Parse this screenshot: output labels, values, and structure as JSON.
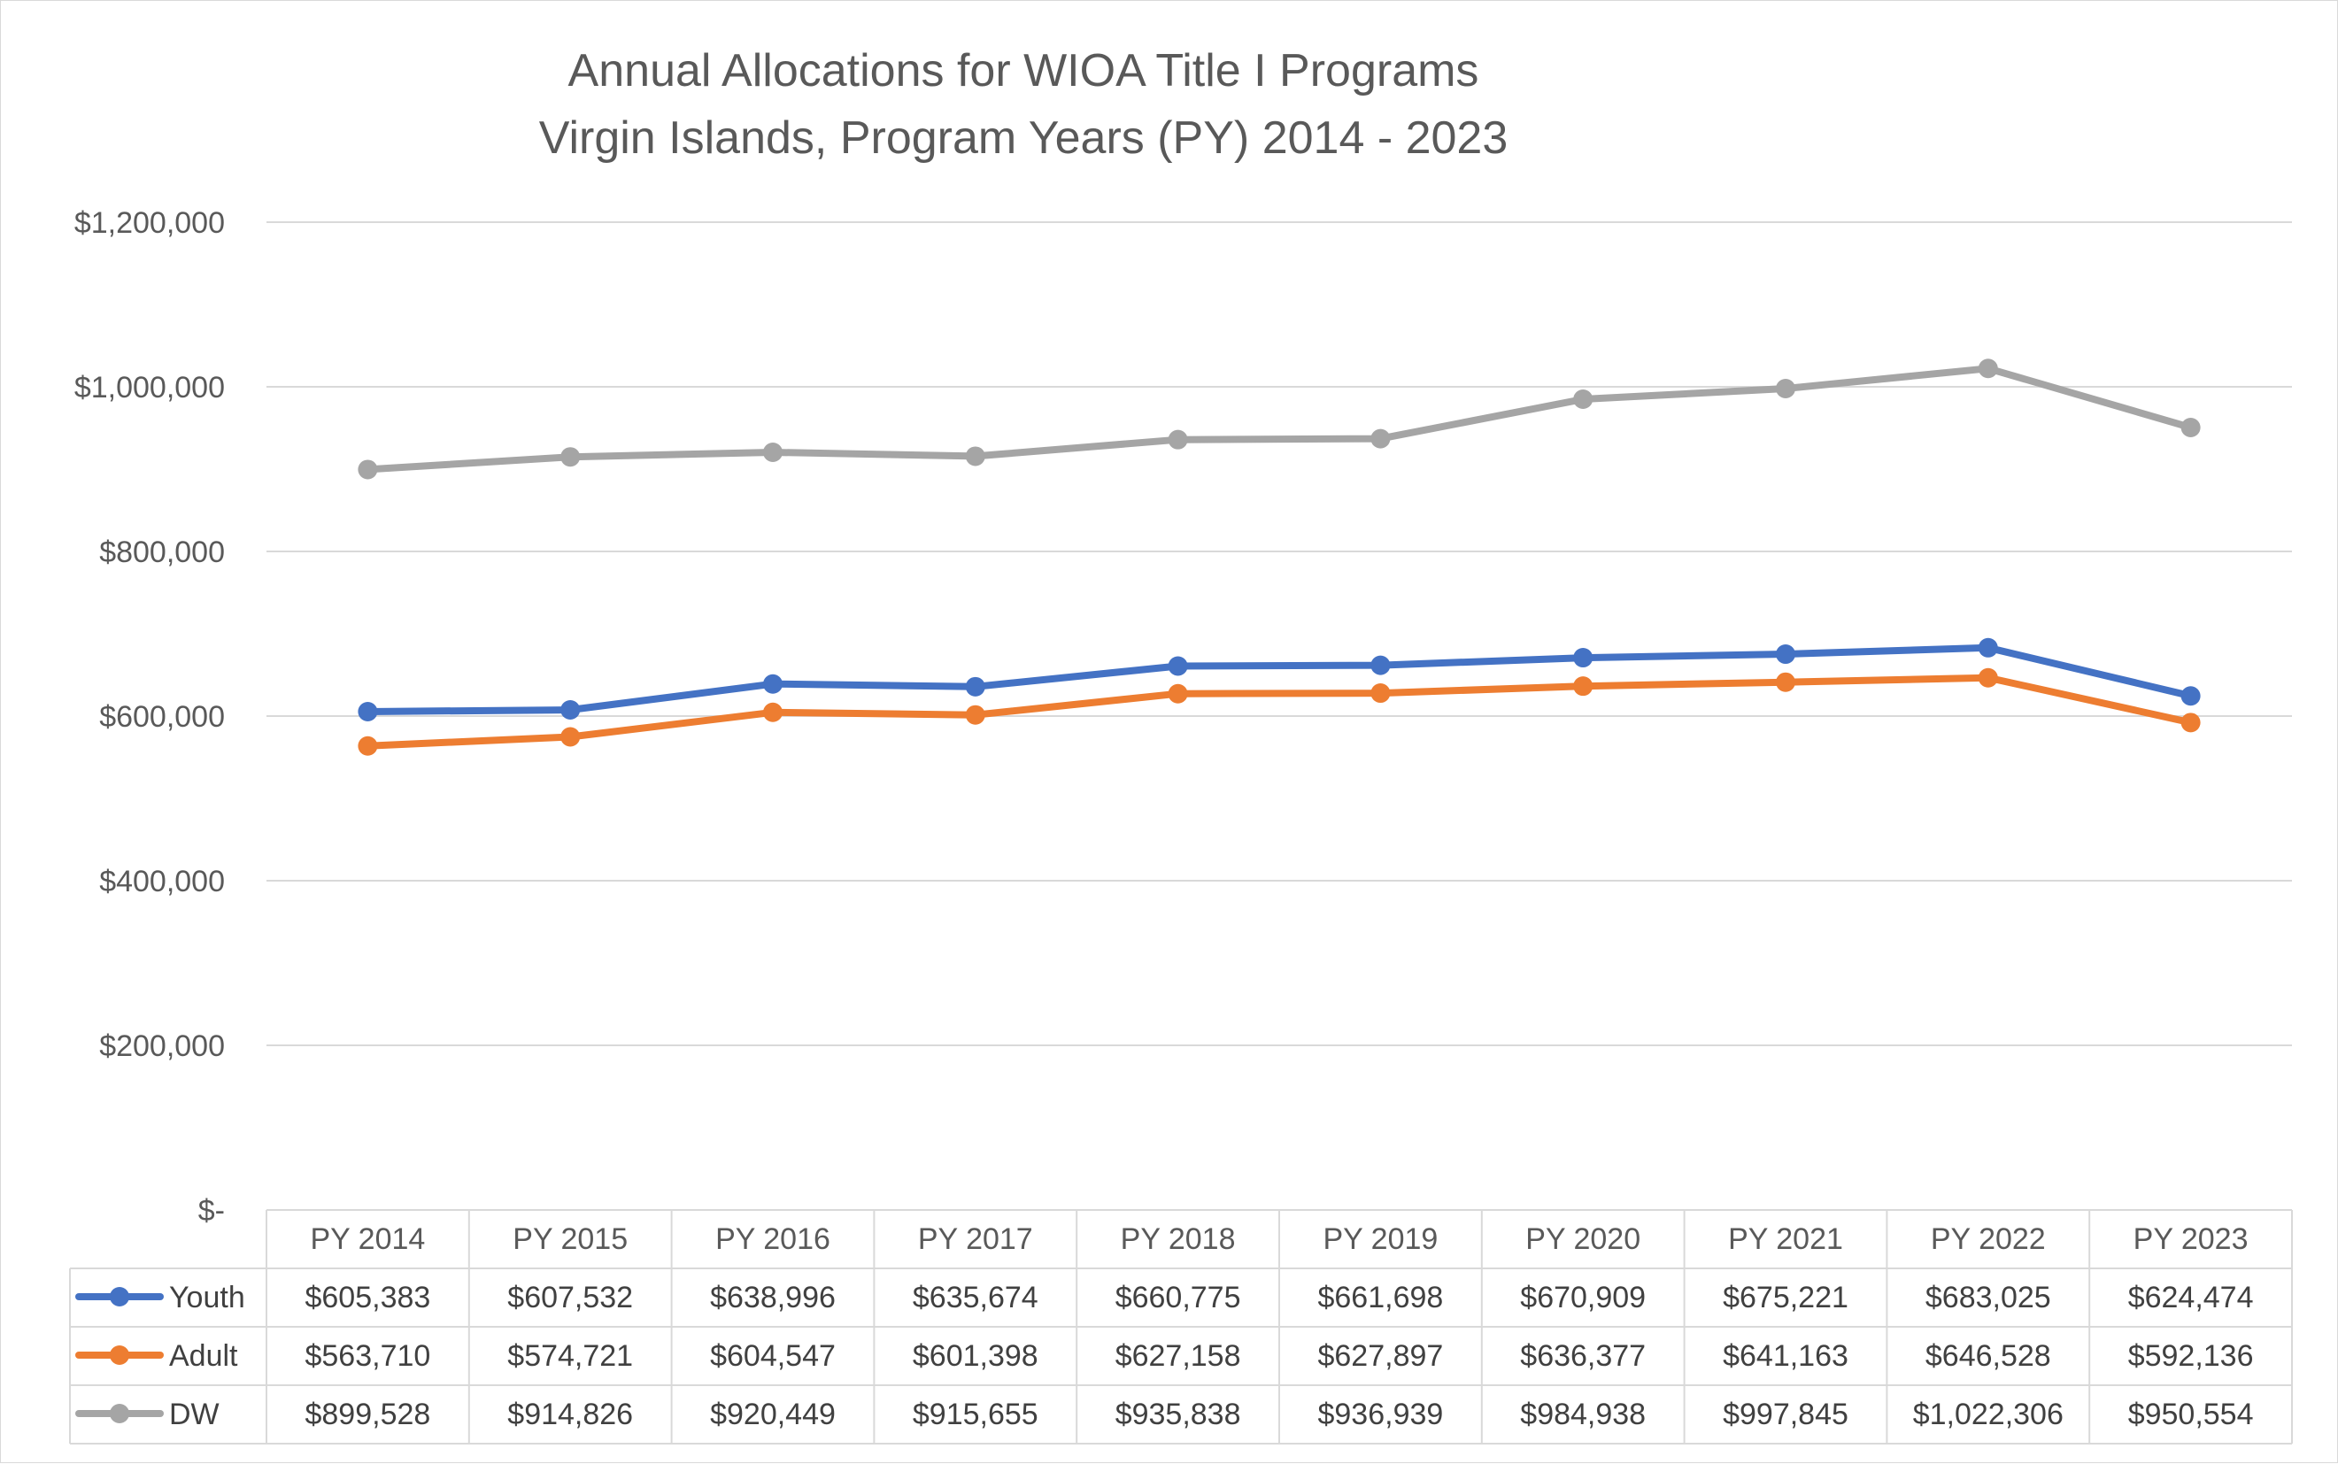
{
  "chart_data": {
    "type": "line",
    "title": "Annual Allocations for WIOA Title I Programs",
    "subtitle": "Virgin Islands, Program Years (PY) 2014 - 2023",
    "categories": [
      "PY 2014",
      "PY 2015",
      "PY 2016",
      "PY 2017",
      "PY 2018",
      "PY 2019",
      "PY 2020",
      "PY 2021",
      "PY 2022",
      "PY 2023"
    ],
    "ylim": [
      0,
      1200000
    ],
    "yticks": [
      0,
      200000,
      400000,
      600000,
      800000,
      1000000,
      1200000
    ],
    "ytick_labels": [
      "$-",
      "$200,000",
      "$400,000",
      "$600,000",
      "$800,000",
      "$1,000,000",
      "$1,200,000"
    ],
    "grid": true,
    "legend": "data-table",
    "series": [
      {
        "name": "Youth",
        "color": "#4472c4",
        "values": [
          605383,
          607532,
          638996,
          635674,
          660775,
          661698,
          670909,
          675221,
          683025,
          624474
        ],
        "labels": [
          "$605,383",
          "$607,532",
          "$638,996",
          "$635,674",
          "$660,775",
          "$661,698",
          "$670,909",
          "$675,221",
          "$683,025",
          "$624,474"
        ]
      },
      {
        "name": "Adult",
        "color": "#ed7d31",
        "values": [
          563710,
          574721,
          604547,
          601398,
          627158,
          627897,
          636377,
          641163,
          646528,
          592136
        ],
        "labels": [
          "$563,710",
          "$574,721",
          "$604,547",
          "$601,398",
          "$627,158",
          "$627,897",
          "$636,377",
          "$641,163",
          "$646,528",
          "$592,136"
        ]
      },
      {
        "name": "DW",
        "color": "#a5a5a5",
        "values": [
          899528,
          914826,
          920449,
          915655,
          935838,
          936939,
          984938,
          997845,
          1022306,
          950554
        ],
        "labels": [
          "$899,528",
          "$914,826",
          "$920,449",
          "$915,655",
          "$935,838",
          "$936,939",
          "$984,938",
          "$997,845",
          "$1,022,306",
          "$950,554"
        ]
      }
    ]
  }
}
